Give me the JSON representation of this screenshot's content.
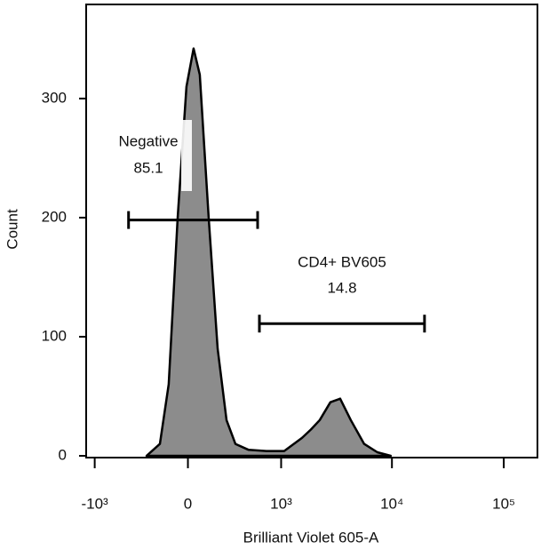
{
  "chart_data": {
    "type": "histogram-area",
    "x_label": "Brilliant Violet 605-A",
    "y_label": "Count",
    "xscale": "biexponential",
    "x": [
      -287,
      -183,
      -122,
      -64,
      -9,
      35,
      74,
      132,
      195,
      264,
      342,
      481,
      723,
      1068,
      1555,
      1871,
      2250,
      2808,
      3438,
      4282,
      5640,
      7410,
      9750
    ],
    "values": [
      0,
      10,
      60,
      200,
      310,
      342,
      320,
      200,
      90,
      30,
      10,
      5,
      4,
      4,
      15,
      22,
      30,
      45,
      48,
      30,
      10,
      3,
      0
    ],
    "color": "#8c8c8c",
    "xlim": [
      -1200,
      200000
    ],
    "xticks": [
      {
        "value": -1000,
        "label": "-10³"
      },
      0,
      {
        "value": 1000,
        "label": "10³"
      },
      {
        "value": 10000,
        "label": "10⁴"
      },
      {
        "value": 100000,
        "label": "10⁵"
      }
    ],
    "ylim": [
      0,
      379
    ],
    "yticks": [
      0,
      100,
      200,
      300
    ],
    "gates": [
      {
        "name": "Negative",
        "percent": 85.1,
        "range": [
          -465,
          594
        ],
        "y": 198
      },
      {
        "name": "CD4+ BV605",
        "percent": 14.8,
        "range": [
          619,
          19560
        ],
        "y": 111
      }
    ]
  }
}
